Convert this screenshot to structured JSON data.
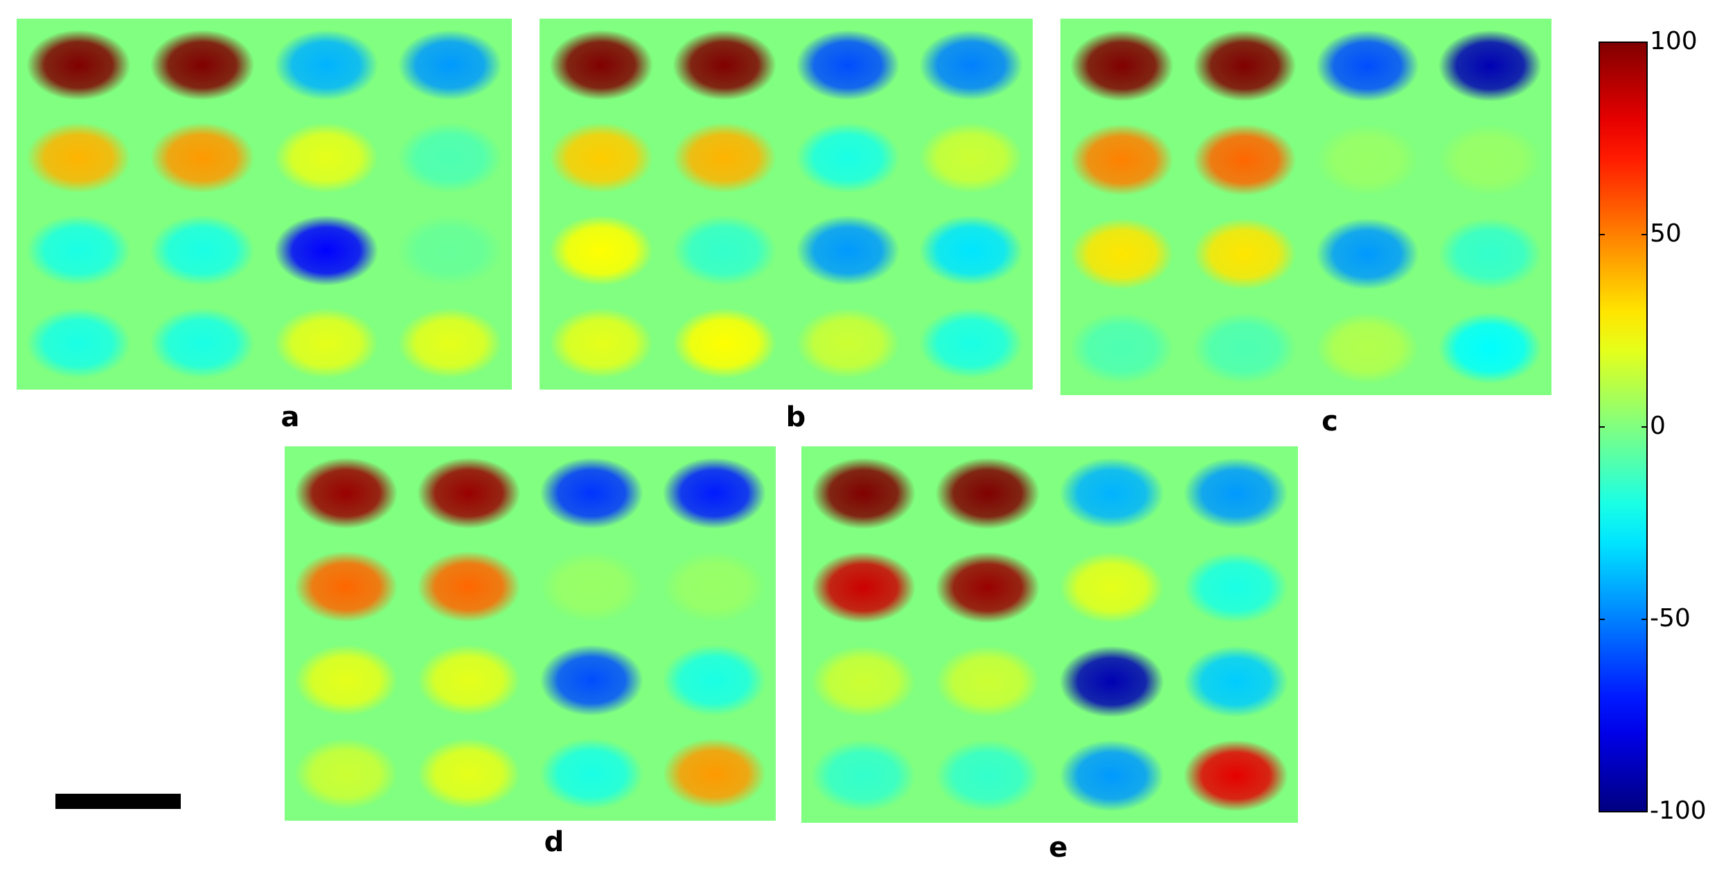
{
  "figure": {
    "panels": [
      {
        "label": "a",
        "cells": [
          [
            100,
            100,
            -40,
            -45
          ],
          [
            40,
            45,
            20,
            -10
          ],
          [
            -20,
            -20,
            -75,
            -5
          ],
          [
            -20,
            -20,
            20,
            20
          ]
        ]
      },
      {
        "label": "b",
        "cells": [
          [
            100,
            100,
            -60,
            -50
          ],
          [
            35,
            40,
            -20,
            15
          ],
          [
            25,
            -15,
            -45,
            -30
          ],
          [
            20,
            25,
            15,
            -20
          ]
        ]
      },
      {
        "label": "c",
        "cells": [
          [
            100,
            100,
            -60,
            -90
          ],
          [
            50,
            55,
            5,
            5
          ],
          [
            30,
            30,
            -45,
            -15
          ],
          [
            -10,
            -10,
            10,
            -25
          ]
        ]
      },
      {
        "label": "d",
        "cells": [
          [
            95,
            95,
            -65,
            -70
          ],
          [
            55,
            55,
            5,
            5
          ],
          [
            20,
            20,
            -60,
            -20
          ],
          [
            15,
            20,
            -20,
            45
          ]
        ]
      },
      {
        "label": "e",
        "cells": [
          [
            100,
            100,
            -40,
            -45
          ],
          [
            85,
            95,
            20,
            -20
          ],
          [
            15,
            15,
            -90,
            -35
          ],
          [
            -15,
            -15,
            -45,
            80
          ]
        ]
      }
    ],
    "colorbar": {
      "clim": [
        -100,
        100
      ],
      "ticks": [
        100,
        50,
        0,
        -50,
        -100
      ]
    }
  }
}
